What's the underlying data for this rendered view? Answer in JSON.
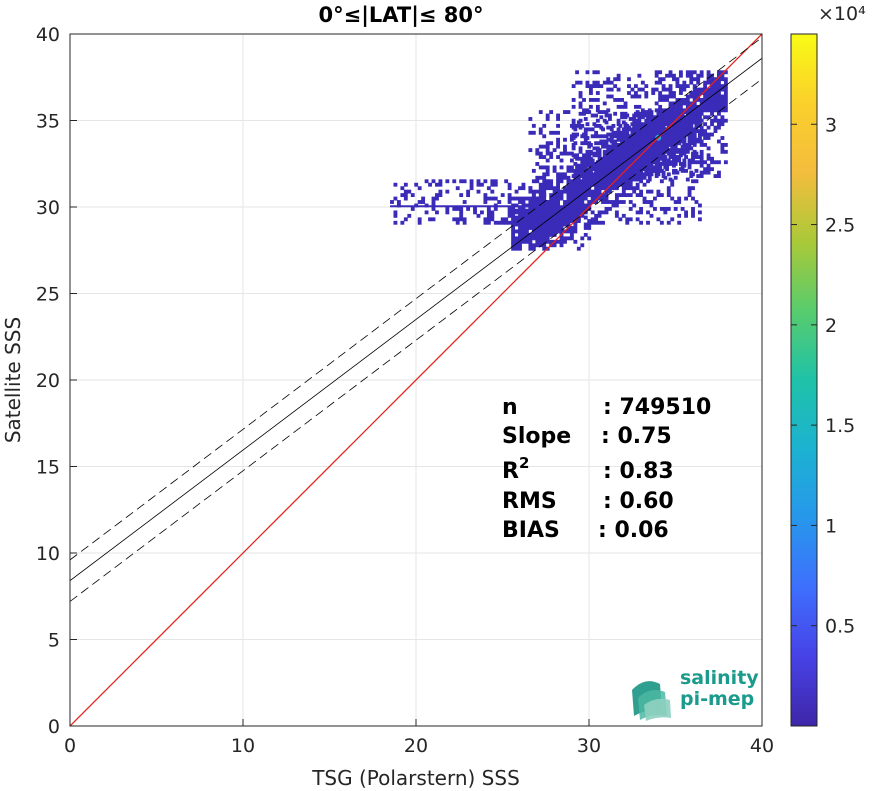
{
  "chart_data": {
    "type": "heatmap",
    "title": "0°≤|LAT|≤ 80°",
    "xlabel": "TSG (Polarstern) SSS",
    "ylabel": "Satellite SSS",
    "xlim": [
      0,
      40
    ],
    "ylim": [
      0,
      40
    ],
    "x_ticks": [
      "0",
      "10",
      "20",
      "30",
      "40"
    ],
    "y_ticks": [
      "0",
      "5",
      "10",
      "15",
      "20",
      "25",
      "30",
      "35",
      "40"
    ],
    "grid": true,
    "reference_line": {
      "name": "1:1",
      "color": "#e8231a",
      "x": [
        0,
        40
      ],
      "y": [
        0,
        40
      ]
    },
    "regression_line": {
      "color": "#000000",
      "x": [
        0,
        40
      ],
      "y": [
        8.4,
        38.6
      ]
    },
    "confidence_band": {
      "color": "#000000",
      "style": "dashed",
      "offset": 1.2
    },
    "density_regions": [
      {
        "x": [
          18.5,
          27.5
        ],
        "y": [
          29.0,
          31.5
        ]
      },
      {
        "x": [
          26.5,
          36.5
        ],
        "y": [
          29.0,
          35.5
        ]
      },
      {
        "x": [
          29.0,
          38.0
        ],
        "y": [
          31.5,
          37.8
        ]
      },
      {
        "x": [
          25.5,
          30.0
        ],
        "y": [
          27.5,
          30.0
        ]
      },
      {
        "x": [
          31.0,
          35.5
        ],
        "y": [
          32.0,
          34.5
        ]
      }
    ],
    "peak_point": {
      "x": 34.0,
      "y": 34.0
    },
    "colorbar": {
      "multiplier_label": "×10⁴",
      "ticks": [
        "0.5",
        "1",
        "1.5",
        "2",
        "2.5",
        "3"
      ],
      "tick_values": [
        0.5,
        1,
        1.5,
        2,
        2.5,
        3
      ],
      "range": [
        0,
        3.45
      ],
      "colormap": [
        "#3e26a8",
        "#4742e6",
        "#3e6ffd",
        "#2797eb",
        "#1cb2d1",
        "#1fc2a8",
        "#58cc6d",
        "#aac938",
        "#f3bd3d",
        "#fad02b",
        "#f9fb15"
      ]
    },
    "stats": [
      {
        "label": "n",
        "value": ": 749510"
      },
      {
        "label": "Slope",
        "value": ": 0.75"
      },
      {
        "label": "R",
        "sup": "2",
        "value": ": 0.83"
      },
      {
        "label": "RMS",
        "value": ": 0.60"
      },
      {
        "label": "BIAS",
        "value": ": 0.06"
      }
    ],
    "logo": {
      "line1": "salinity",
      "line2": "pi-mep"
    }
  }
}
